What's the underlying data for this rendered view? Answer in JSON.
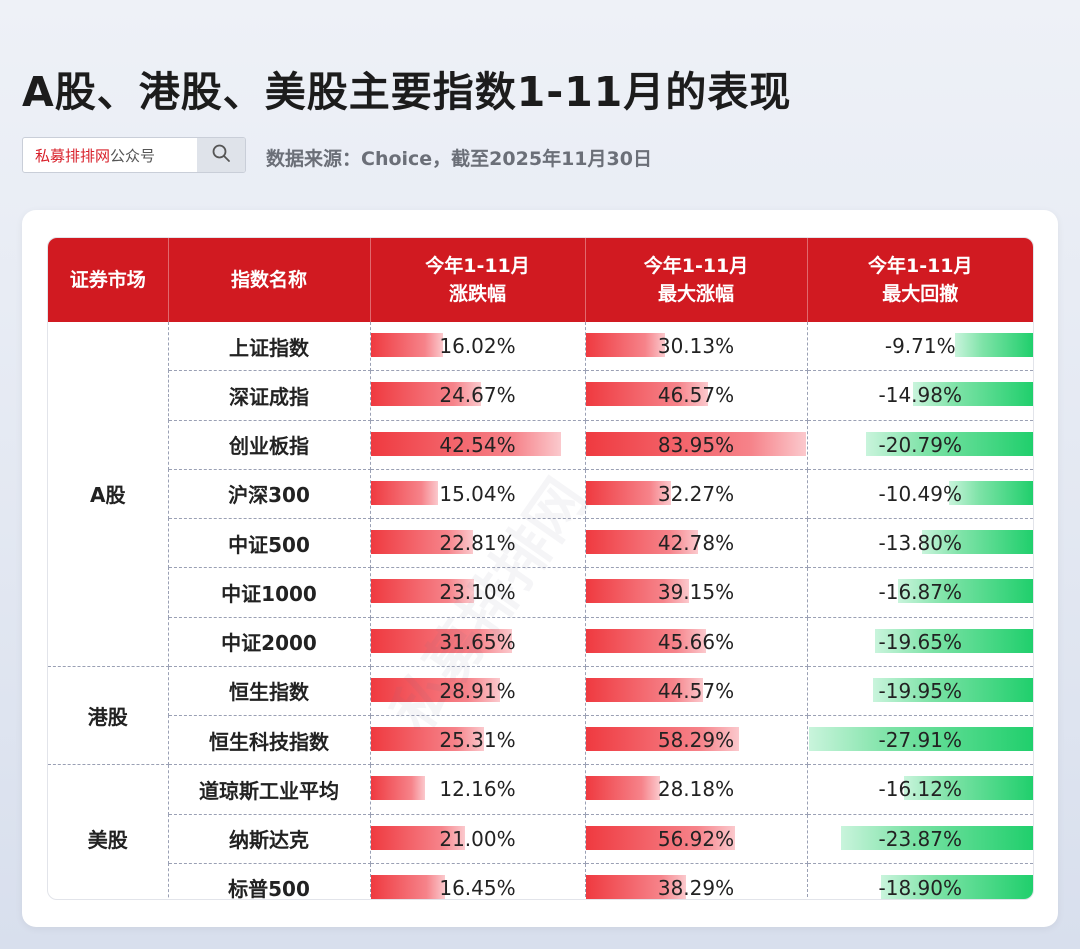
{
  "title": "A股、港股、美股主要指数1-11月的表现",
  "search": {
    "brand": "私募排排网",
    "suffix": "公众号"
  },
  "source": "数据来源：Choice，截至2025年11月30日",
  "icons": {
    "search": "search-icon"
  },
  "colors": {
    "header_red": "#d11a21",
    "pos_bar": "#ef3a40",
    "neg_bar": "#20cf6c"
  },
  "headers": {
    "market": "证券市场",
    "name": "指数名称",
    "ytd": [
      "今年1-11月",
      "涨跌幅"
    ],
    "max_gain": [
      "今年1-11月",
      "最大涨幅"
    ],
    "max_drawdown": [
      "今年1-11月",
      "最大回撤"
    ]
  },
  "markets": [
    "A股",
    "港股",
    "美股"
  ],
  "chart_data": {
    "type": "table",
    "columns": [
      "证券市场",
      "指数名称",
      "今年1-11月涨跌幅",
      "今年1-11月最大涨幅",
      "今年1-11月最大回撤"
    ],
    "rows": [
      {
        "market": "A股",
        "name": "上证指数",
        "ytd": "16.02%",
        "max_gain": "30.13%",
        "max_drawdown": "-9.71%",
        "ytd_v": 16.02,
        "gain_v": 30.13,
        "dd_v": -9.71
      },
      {
        "market": "A股",
        "name": "深证成指",
        "ytd": "24.67%",
        "max_gain": "46.57%",
        "max_drawdown": "-14.98%",
        "ytd_v": 24.67,
        "gain_v": 46.57,
        "dd_v": -14.98
      },
      {
        "market": "A股",
        "name": "创业板指",
        "ytd": "42.54%",
        "max_gain": "83.95%",
        "max_drawdown": "-20.79%",
        "ytd_v": 42.54,
        "gain_v": 83.95,
        "dd_v": -20.79
      },
      {
        "market": "A股",
        "name": "沪深300",
        "ytd": "15.04%",
        "max_gain": "32.27%",
        "max_drawdown": "-10.49%",
        "ytd_v": 15.04,
        "gain_v": 32.27,
        "dd_v": -10.49
      },
      {
        "market": "A股",
        "name": "中证500",
        "ytd": "22.81%",
        "max_gain": "42.78%",
        "max_drawdown": "-13.80%",
        "ytd_v": 22.81,
        "gain_v": 42.78,
        "dd_v": -13.8
      },
      {
        "market": "A股",
        "name": "中证1000",
        "ytd": "23.10%",
        "max_gain": "39.15%",
        "max_drawdown": "-16.87%",
        "ytd_v": 23.1,
        "gain_v": 39.15,
        "dd_v": -16.87
      },
      {
        "market": "A股",
        "name": "中证2000",
        "ytd": "31.65%",
        "max_gain": "45.66%",
        "max_drawdown": "-19.65%",
        "ytd_v": 31.65,
        "gain_v": 45.66,
        "dd_v": -19.65
      },
      {
        "market": "港股",
        "name": "恒生指数",
        "ytd": "28.91%",
        "max_gain": "44.57%",
        "max_drawdown": "-19.95%",
        "ytd_v": 28.91,
        "gain_v": 44.57,
        "dd_v": -19.95
      },
      {
        "market": "港股",
        "name": "恒生科技指数",
        "ytd": "25.31%",
        "max_gain": "58.29%",
        "max_drawdown": "-27.91%",
        "ytd_v": 25.31,
        "gain_v": 58.29,
        "dd_v": -27.91
      },
      {
        "market": "美股",
        "name": "道琼斯工业平均",
        "ytd": "12.16%",
        "max_gain": "28.18%",
        "max_drawdown": "-16.12%",
        "ytd_v": 12.16,
        "gain_v": 28.18,
        "dd_v": -16.12
      },
      {
        "market": "美股",
        "name": "纳斯达克",
        "ytd": "21.00%",
        "max_gain": "56.92%",
        "max_drawdown": "-23.87%",
        "ytd_v": 21.0,
        "gain_v": 56.92,
        "dd_v": -23.87
      },
      {
        "market": "美股",
        "name": "标普500",
        "ytd": "16.45%",
        "max_gain": "38.29%",
        "max_drawdown": "-18.90%",
        "ytd_v": 16.45,
        "gain_v": 38.29,
        "dd_v": -18.9
      }
    ]
  }
}
